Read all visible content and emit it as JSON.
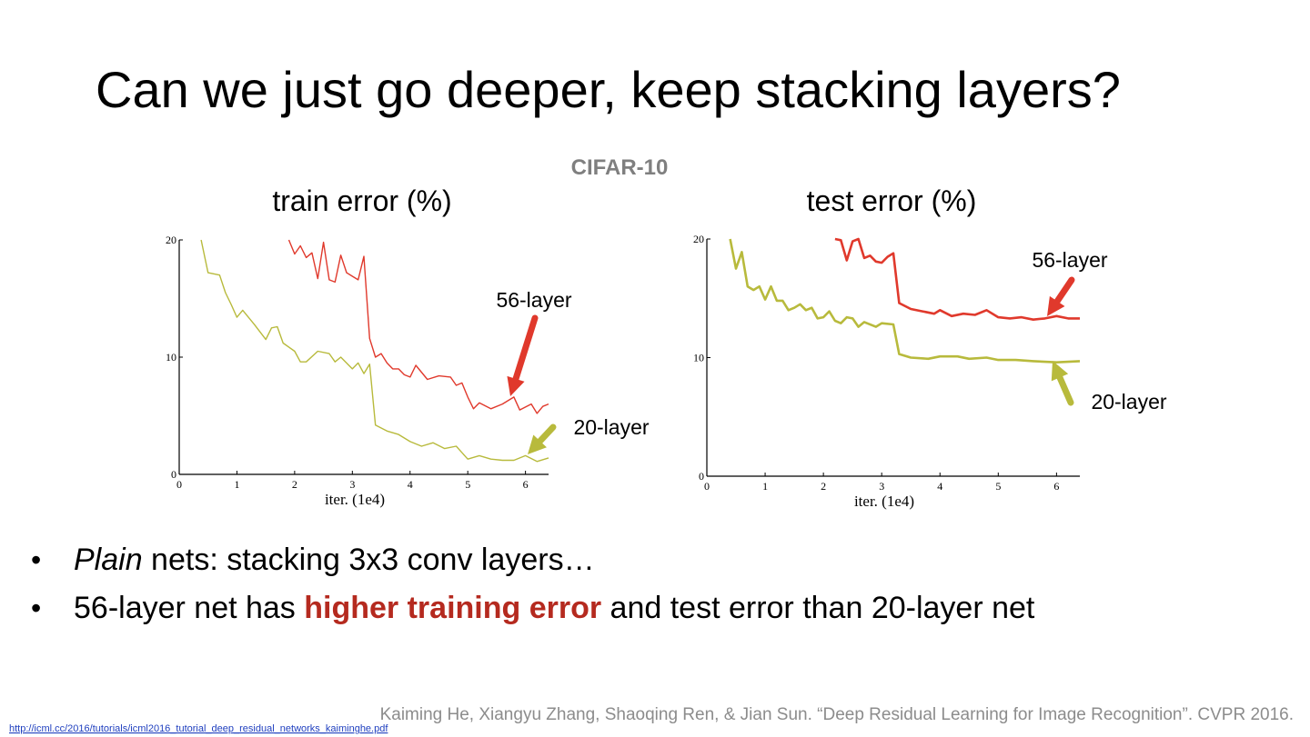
{
  "slide": {
    "title": "Can we just go deeper, keep stacking layers?",
    "subtitle": "CIFAR-10",
    "bullets": [
      [
        {
          "text": "Plain",
          "style": "italic"
        },
        {
          "text": " nets: stacking 3x3 conv layers…",
          "style": "normal"
        }
      ],
      [
        {
          "text": "56-layer net has ",
          "style": "normal"
        },
        {
          "text": "higher training error",
          "style": "bold-red"
        },
        {
          "text": " and test error than 20-layer net",
          "style": "normal"
        }
      ]
    ],
    "citation": "Kaiming He, Xiangyu Zhang, Shaoqing  Ren, & Jian Sun. “Deep Residual Learning for Image Recognition”. CVPR 2016.",
    "link": "http://icml.cc/2016/tutorials/icml2016_tutorial_deep_residual_networks_kaiminghe.pdf"
  },
  "chart_data": [
    {
      "type": "line",
      "title": "train error (%)",
      "x_label": "iter. (1e4)",
      "xlim": [
        0,
        6.4
      ],
      "ylim": [
        0,
        20
      ],
      "xticks": [
        0,
        1,
        2,
        3,
        4,
        5,
        6
      ],
      "yticks": [
        0,
        10,
        20
      ],
      "series": [
        {
          "name": "56-layer",
          "color": "#e0392c",
          "x": [
            1.9,
            2.0,
            2.1,
            2.2,
            2.3,
            2.4,
            2.5,
            2.6,
            2.7,
            2.8,
            2.9,
            3.0,
            3.1,
            3.2,
            3.3,
            3.4,
            3.5,
            3.6,
            3.7,
            3.8,
            3.9,
            4.0,
            4.1,
            4.3,
            4.5,
            4.7,
            4.8,
            4.9,
            5.0,
            5.1,
            5.2,
            5.4,
            5.6,
            5.8,
            5.9,
            6.1,
            6.2,
            6.3,
            6.4
          ],
          "values": [
            20,
            18.8,
            19.5,
            18.5,
            18.9,
            16.7,
            19.8,
            16.6,
            16.4,
            18.7,
            17.2,
            16.9,
            16.6,
            18.6,
            11.6,
            10,
            10.3,
            9.5,
            9,
            9,
            8.5,
            8.3,
            9.3,
            8.1,
            8.4,
            8.3,
            7.6,
            7.8,
            6.6,
            5.6,
            6.1,
            5.6,
            6,
            6.6,
            5.5,
            6,
            5.2,
            5.8,
            6
          ]
        },
        {
          "name": "20-layer",
          "color": "#b8ba3c",
          "x": [
            0.38,
            0.5,
            0.7,
            0.8,
            0.9,
            1.0,
            1.1,
            1.3,
            1.5,
            1.6,
            1.7,
            1.8,
            2.0,
            2.1,
            2.2,
            2.4,
            2.6,
            2.7,
            2.8,
            3.0,
            3.1,
            3.2,
            3.3,
            3.4,
            3.6,
            3.8,
            4.0,
            4.2,
            4.4,
            4.6,
            4.8,
            5.0,
            5.2,
            5.4,
            5.6,
            5.8,
            6.0,
            6.2,
            6.4
          ],
          "values": [
            20,
            17.2,
            17,
            15.5,
            14.5,
            13.4,
            14,
            12.8,
            11.5,
            12.5,
            12.6,
            11.2,
            10.5,
            9.6,
            9.6,
            10.5,
            10.3,
            9.6,
            10,
            9,
            9.5,
            8.6,
            9.4,
            4.2,
            3.7,
            3.4,
            2.8,
            2.4,
            2.7,
            2.2,
            2.4,
            1.3,
            1.6,
            1.3,
            1.2,
            1.2,
            1.6,
            1.1,
            1.4
          ]
        }
      ]
    },
    {
      "type": "line",
      "title": "test error (%)",
      "x_label": "iter. (1e4)",
      "xlim": [
        0,
        6.4
      ],
      "ylim": [
        0,
        20
      ],
      "xticks": [
        0,
        1,
        2,
        3,
        4,
        5,
        6
      ],
      "yticks": [
        0,
        10,
        20
      ],
      "series": [
        {
          "name": "56-layer",
          "color": "#e0392c",
          "x": [
            2.2,
            2.3,
            2.4,
            2.5,
            2.6,
            2.7,
            2.8,
            2.9,
            3.0,
            3.1,
            3.2,
            3.3,
            3.5,
            3.7,
            3.9,
            4.0,
            4.2,
            4.4,
            4.6,
            4.8,
            5.0,
            5.2,
            5.4,
            5.6,
            5.8,
            6.0,
            6.2,
            6.4
          ],
          "values": [
            20,
            19.9,
            18.2,
            19.8,
            20,
            18.4,
            18.6,
            18.1,
            18,
            18.5,
            18.8,
            14.6,
            14.1,
            13.9,
            13.7,
            14,
            13.5,
            13.7,
            13.6,
            14,
            13.4,
            13.3,
            13.4,
            13.2,
            13.3,
            13.5,
            13.3,
            13.3
          ]
        },
        {
          "name": "20-layer",
          "color": "#b8ba3c",
          "x": [
            0.4,
            0.5,
            0.6,
            0.7,
            0.8,
            0.9,
            1.0,
            1.1,
            1.2,
            1.3,
            1.4,
            1.5,
            1.6,
            1.7,
            1.8,
            1.9,
            2.0,
            2.1,
            2.2,
            2.3,
            2.4,
            2.5,
            2.6,
            2.7,
            2.9,
            3.0,
            3.2,
            3.3,
            3.5,
            3.8,
            4.0,
            4.3,
            4.5,
            4.8,
            5.0,
            5.3,
            5.6,
            6.0,
            6.4
          ],
          "values": [
            20,
            17.5,
            18.9,
            16,
            15.7,
            16,
            14.9,
            16,
            14.8,
            14.8,
            14,
            14.2,
            14.5,
            14,
            14.2,
            13.3,
            13.4,
            13.9,
            13.1,
            12.9,
            13.4,
            13.3,
            12.6,
            13,
            12.6,
            12.9,
            12.8,
            10.3,
            10,
            9.9,
            10.1,
            10.1,
            9.9,
            10,
            9.8,
            9.8,
            9.7,
            9.6,
            9.7
          ]
        }
      ]
    }
  ]
}
